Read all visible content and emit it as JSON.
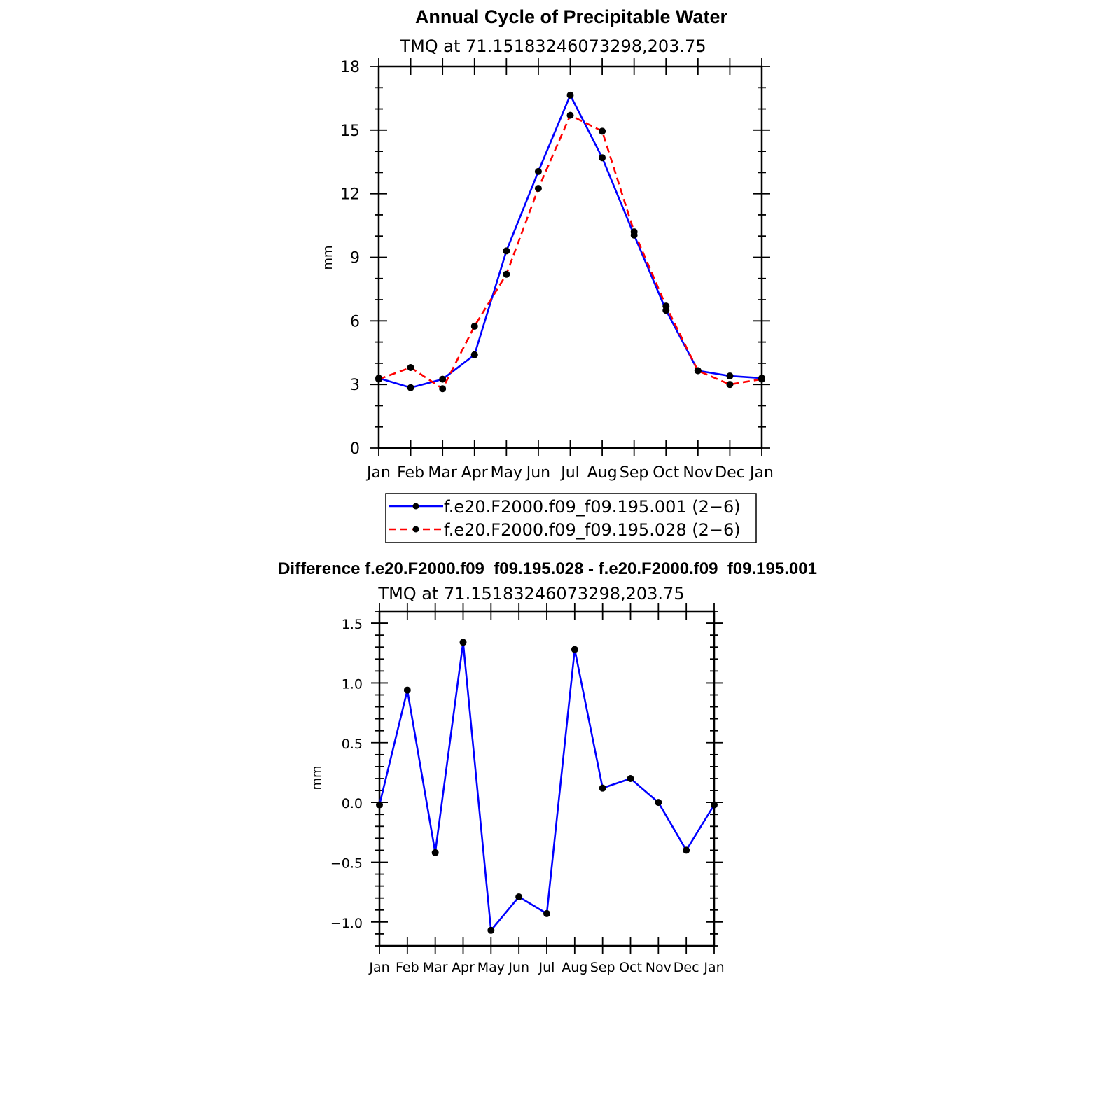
{
  "chart_data": [
    {
      "type": "line",
      "title": "Annual Cycle of Precipitable Water",
      "subtitle": "TMQ  at  71.15183246073298,203.75",
      "xlabel": "",
      "ylabel": "mm",
      "categories": [
        "Jan",
        "Feb",
        "Mar",
        "Apr",
        "May",
        "Jun",
        "Jul",
        "Aug",
        "Sep",
        "Oct",
        "Nov",
        "Dec",
        "Jan"
      ],
      "ylim": [
        0,
        18
      ],
      "yticks": [
        0,
        3,
        6,
        9,
        12,
        15,
        18
      ],
      "ytick_labels": [
        "0",
        "3",
        "6",
        "9",
        "12",
        "15",
        "18"
      ],
      "series": [
        {
          "name": "f.e20.F2000.f09_f09.195.001 (2−6)",
          "color": "#0000ff",
          "dash": "solid",
          "values": [
            3.3,
            2.85,
            3.25,
            4.4,
            9.3,
            13.05,
            16.65,
            13.7,
            10.05,
            6.5,
            3.65,
            3.4,
            3.3
          ]
        },
        {
          "name": "f.e20.F2000.f09_f09.195.028 (2−6)",
          "color": "#ff0000",
          "dash": "dashed",
          "values": [
            3.25,
            3.8,
            2.8,
            5.75,
            8.2,
            12.25,
            15.7,
            14.95,
            10.2,
            6.7,
            3.65,
            3.0,
            3.25
          ]
        }
      ],
      "legend_position": "below"
    },
    {
      "type": "line",
      "title": "Difference f.e20.F2000.f09_f09.195.028 - f.e20.F2000.f09_f09.195.001",
      "subtitle": "TMQ  at  71.15183246073298,203.75",
      "xlabel": "",
      "ylabel": "mm",
      "categories": [
        "Jan",
        "Feb",
        "Mar",
        "Apr",
        "May",
        "Jun",
        "Jul",
        "Aug",
        "Sep",
        "Oct",
        "Nov",
        "Dec",
        "Jan"
      ],
      "ylim": [
        -1.2,
        1.6
      ],
      "yticks": [
        -1.0,
        -0.5,
        0.0,
        0.5,
        1.0,
        1.5
      ],
      "ytick_labels": [
        "−1.0",
        "−0.5",
        "0.0",
        "0.5",
        "1.0",
        "1.5"
      ],
      "series": [
        {
          "name": "difference",
          "color": "#0000ff",
          "dash": "solid",
          "values": [
            -0.02,
            0.94,
            -0.42,
            1.34,
            -1.07,
            -0.79,
            -0.93,
            1.28,
            0.12,
            0.2,
            0.0,
            -0.4,
            -0.02
          ]
        }
      ]
    }
  ]
}
